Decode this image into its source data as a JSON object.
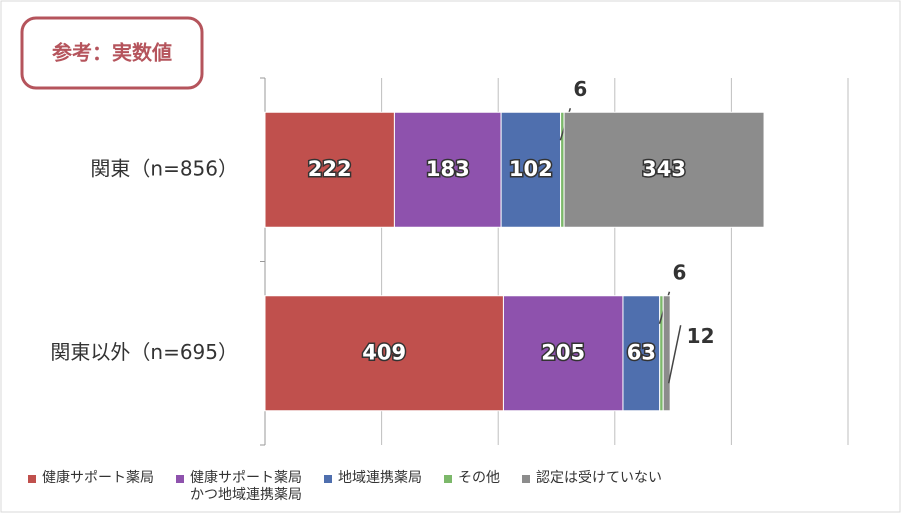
{
  "chart_data": {
    "type": "stacked-barh",
    "annotation": "参考：実数値",
    "categories": [
      "関東（n=856）",
      "関東以外（n=695）"
    ],
    "series": [
      {
        "name": "健康サポート薬局",
        "color": "#c0504d",
        "values": [
          222,
          409
        ]
      },
      {
        "name": "健康サポート薬局\nかつ地域連携薬局",
        "color": "#8e52ad",
        "values": [
          183,
          205
        ]
      },
      {
        "name": "地域連携薬局",
        "color": "#4f6fae",
        "values": [
          102,
          63
        ]
      },
      {
        "name": "その他",
        "color": "#7cb86a",
        "values": [
          6,
          6
        ]
      },
      {
        "name": "認定は受けていない",
        "color": "#8c8c8c",
        "values": [
          343,
          12
        ]
      }
    ],
    "xlim": [
      0,
      1000
    ],
    "xticks": [
      0,
      200,
      400,
      600,
      800,
      1000
    ],
    "grid": true
  }
}
